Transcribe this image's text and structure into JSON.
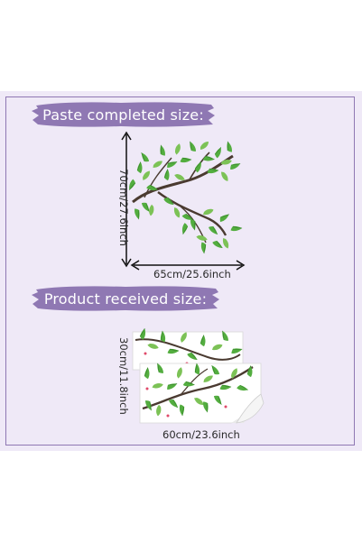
{
  "banners": {
    "paste": "Paste completed size:",
    "received": "Product received size:"
  },
  "dimensions": {
    "paste_height": "70cm/27.6inch",
    "paste_width": "65cm/25.6inch",
    "received_height": "30cm/11.8inch",
    "received_width": "60cm/23.6inch"
  },
  "colors": {
    "background": "#efe9f7",
    "banner": "#8f78b3",
    "leaf": "#4aa83a",
    "branch": "#4a3a30"
  }
}
